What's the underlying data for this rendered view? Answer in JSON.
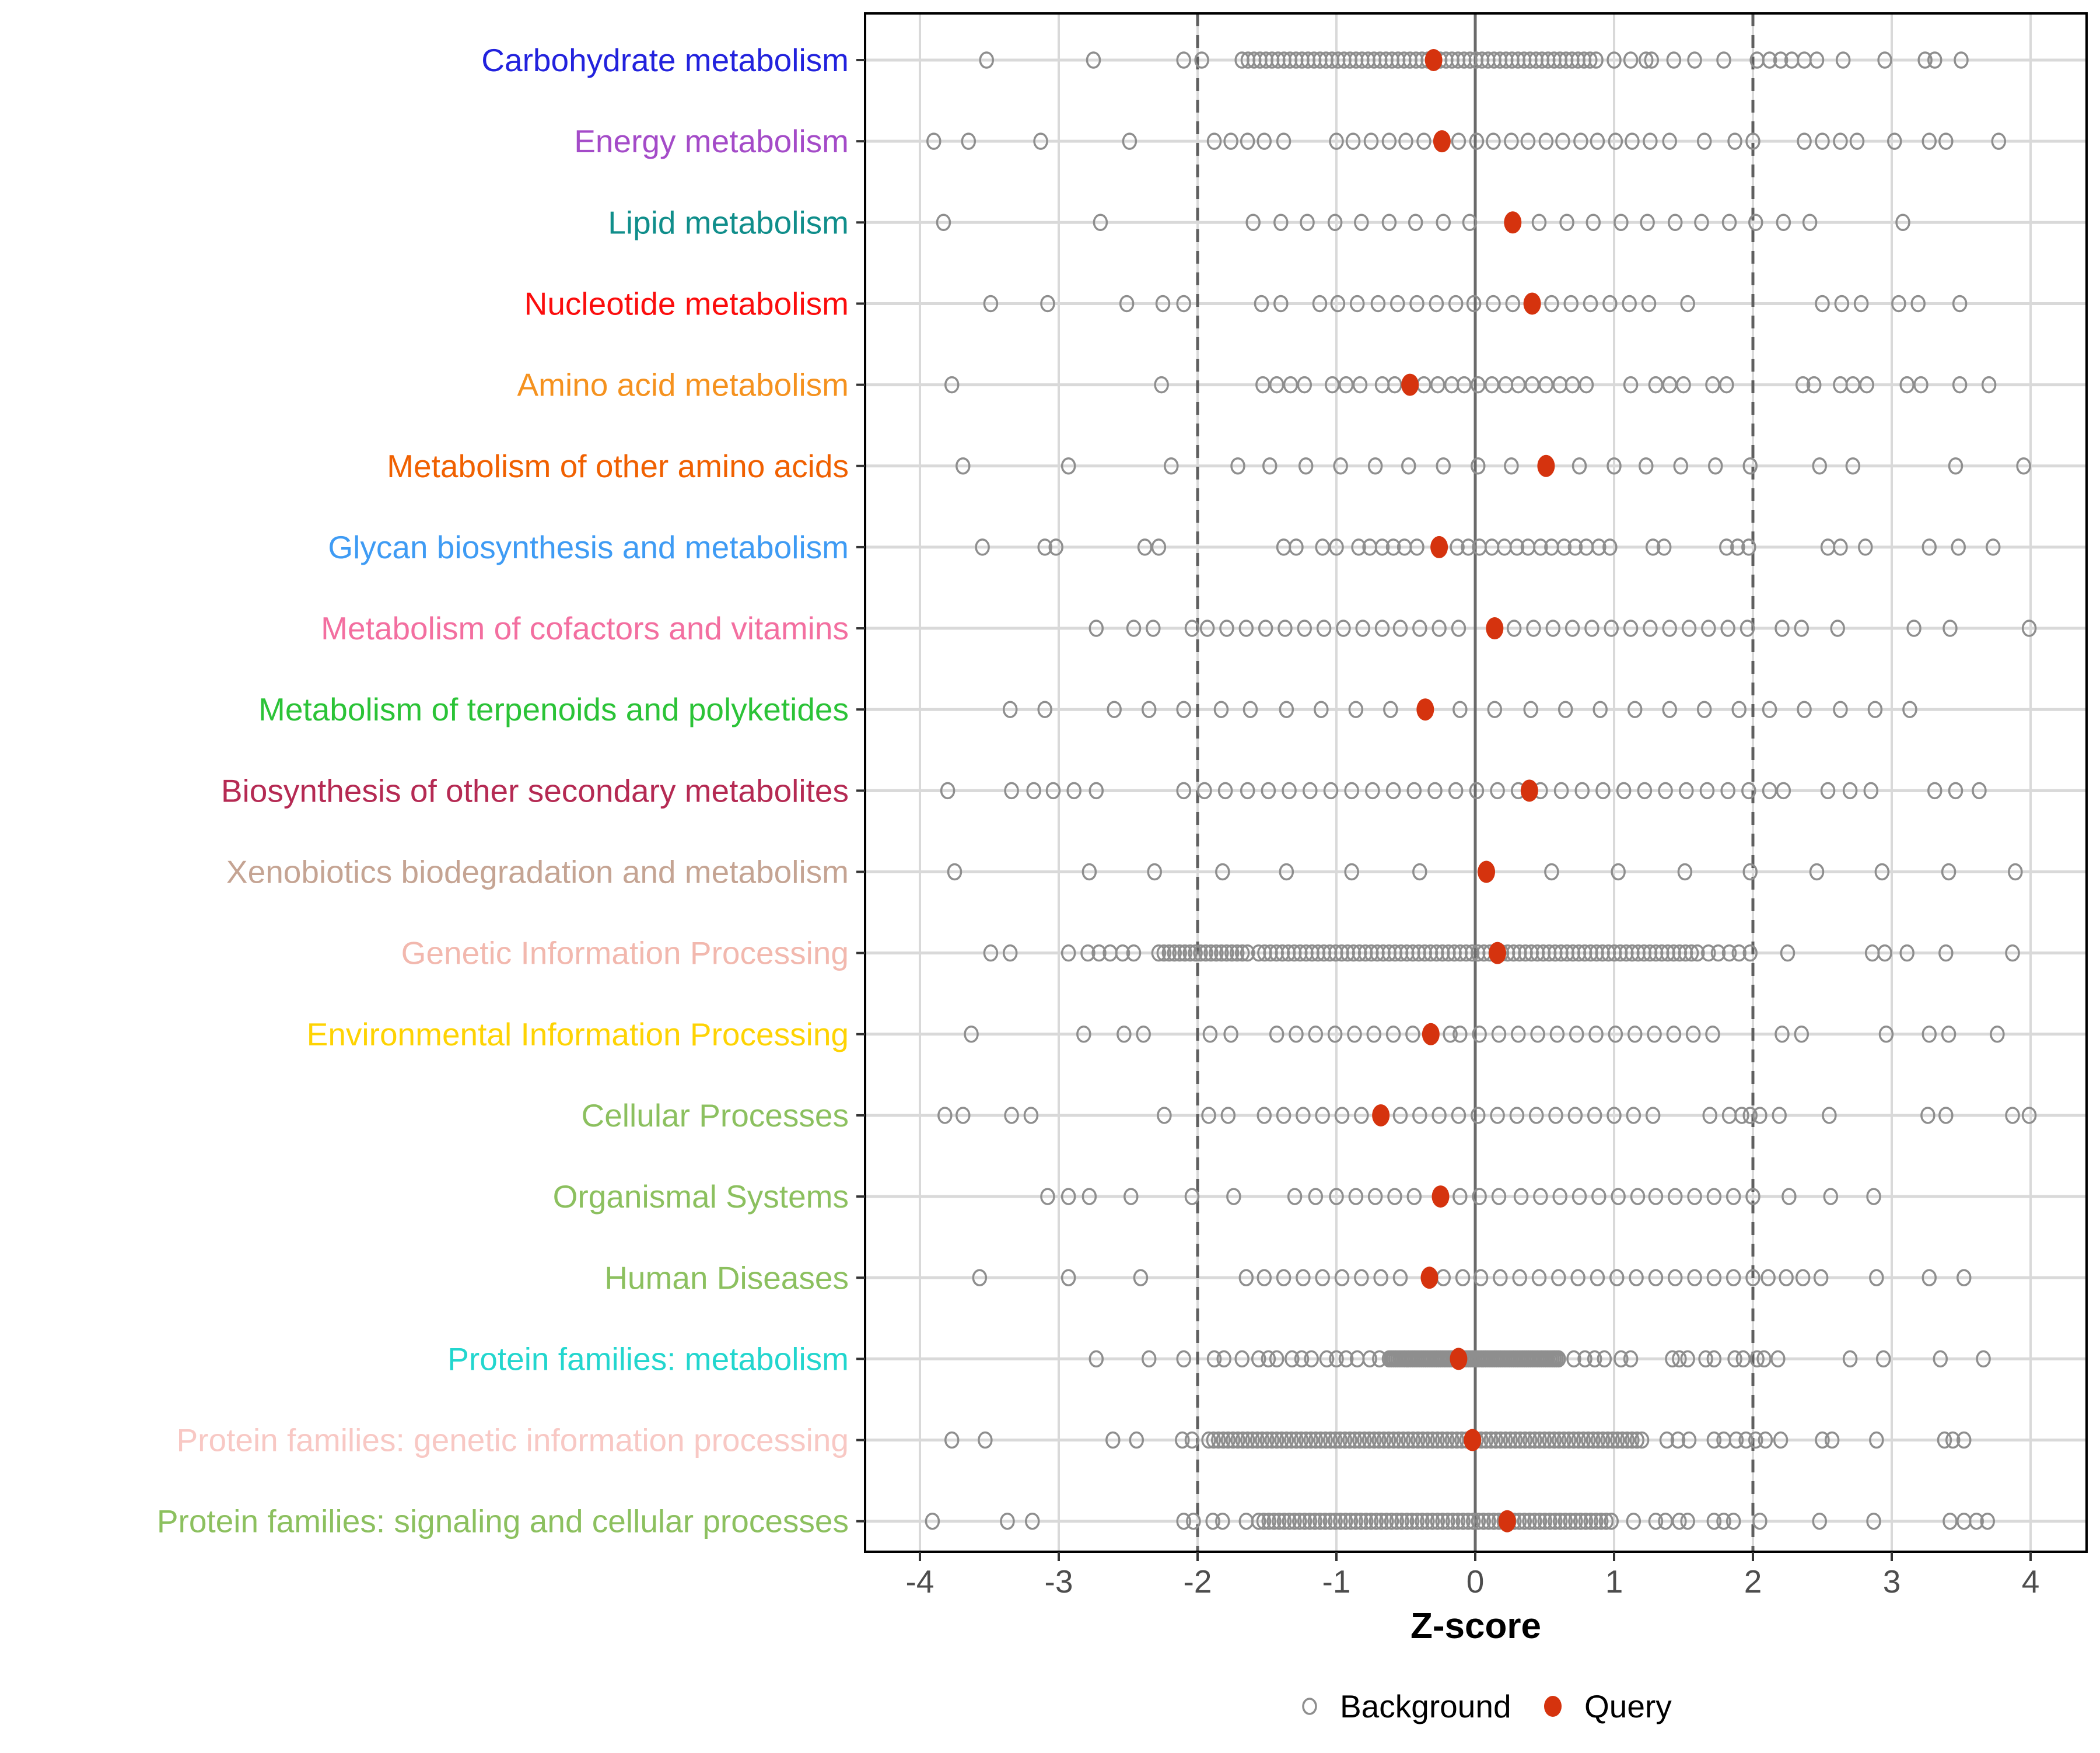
{
  "chart_data": {
    "type": "scatter",
    "title": "",
    "xlabel": "Z-score",
    "ylabel": "",
    "xlim": [
      -4.4,
      4.4
    ],
    "xticks": [
      -4,
      -3,
      -2,
      -1,
      0,
      1,
      2,
      3,
      4
    ],
    "grid": true,
    "reference_lines": {
      "solid_at": 0,
      "dashed_at": [
        -2,
        2
      ]
    },
    "legend_position": "bottom",
    "legend": [
      {
        "label": "Background",
        "marker": "open-circle",
        "color": "#8e8e8e"
      },
      {
        "label": "Query",
        "marker": "filled-circle",
        "color": "#d5330e"
      }
    ],
    "marker_styles": {
      "background_stroke": "#8e8e8e",
      "query_fill": "#d5330e"
    },
    "categories": [
      {
        "name": "Carbohydrate metabolism",
        "color": "#2222dd",
        "query": -0.3,
        "background": [
          -3.52,
          -2.75,
          -2.1,
          -1.97,
          1.0,
          1.12,
          1.23,
          1.27,
          1.43,
          1.58,
          1.79,
          2.03,
          2.12,
          2.2,
          2.28,
          2.37,
          2.46,
          2.65,
          2.95,
          3.24,
          3.31,
          3.5
        ],
        "background_bands": [
          {
            "from": -1.68,
            "to": 0.87,
            "n": 60
          }
        ]
      },
      {
        "name": "Energy metabolism",
        "color": "#a44bc8",
        "query": -0.24,
        "background": [
          -3.9,
          -3.65,
          -3.13,
          -2.49,
          -1.88,
          -1.76,
          -1.64,
          -1.52,
          -1.38,
          -1.0,
          -0.88,
          -0.75,
          -0.62,
          -0.5,
          -0.37,
          -0.12,
          0.01,
          0.13,
          0.26,
          0.38,
          0.51,
          0.63,
          0.76,
          0.88,
          1.01,
          1.13,
          1.26,
          1.4,
          1.65,
          1.87,
          2.0,
          2.37,
          2.5,
          2.63,
          2.75,
          3.02,
          3.27,
          3.39,
          3.77
        ],
        "background_bands": []
      },
      {
        "name": "Lipid metabolism",
        "color": "#108e8b",
        "query": 0.27,
        "background": [
          -3.83,
          -2.7,
          -1.6,
          -1.4,
          -1.21,
          -1.01,
          -0.82,
          -0.62,
          -0.43,
          -0.23,
          -0.04,
          0.46,
          0.66,
          0.85,
          1.05,
          1.24,
          1.44,
          1.63,
          1.83,
          2.02,
          2.22,
          2.41,
          3.08
        ],
        "background_bands": []
      },
      {
        "name": "Nucleotide metabolism",
        "color": "#fb0d0d",
        "query": 0.41,
        "background": [
          -3.49,
          -3.08,
          -2.51,
          -2.25,
          -2.1,
          -1.54,
          -1.4,
          -1.12,
          -0.99,
          -0.85,
          -0.7,
          -0.56,
          -0.42,
          -0.28,
          -0.14,
          -0.01,
          0.13,
          0.27,
          0.55,
          0.69,
          0.83,
          0.97,
          1.11,
          1.25,
          1.53,
          2.5,
          2.64,
          2.78,
          3.05,
          3.19,
          3.49
        ],
        "background_bands": []
      },
      {
        "name": "Amino acid metabolism",
        "color": "#f5921f",
        "query": -0.47,
        "background": [
          -3.77,
          -2.26,
          -1.53,
          -1.43,
          -1.33,
          -1.23,
          -1.03,
          -0.93,
          -0.83,
          -0.67,
          -0.58,
          -0.37,
          -0.27,
          -0.17,
          -0.08,
          0.02,
          0.12,
          0.22,
          0.31,
          0.41,
          0.51,
          0.61,
          0.7,
          0.8,
          1.12,
          1.3,
          1.4,
          1.5,
          1.71,
          1.81,
          2.36,
          2.44,
          2.63,
          2.72,
          2.82,
          3.11,
          3.21,
          3.49,
          3.7
        ],
        "background_bands": []
      },
      {
        "name": "Metabolism of other amino acids",
        "color": "#f06000",
        "query": 0.51,
        "background": [
          -3.69,
          -2.93,
          -2.19,
          -1.71,
          -1.48,
          -1.22,
          -0.97,
          -0.72,
          -0.48,
          -0.23,
          0.02,
          0.26,
          0.75,
          1.0,
          1.23,
          1.48,
          1.73,
          1.98,
          2.48,
          2.72,
          3.46,
          3.95
        ],
        "background_bands": []
      },
      {
        "name": "Glycan biosynthesis and metabolism",
        "color": "#3e9bf4",
        "query": -0.26,
        "background": [
          -3.55,
          -3.1,
          -3.02,
          -2.38,
          -2.28,
          -1.38,
          -1.29,
          -1.1,
          -1.0,
          -0.84,
          -0.76,
          -0.67,
          -0.59,
          -0.51,
          -0.42,
          -0.13,
          -0.05,
          0.03,
          0.12,
          0.21,
          0.3,
          0.38,
          0.47,
          0.55,
          0.64,
          0.72,
          0.8,
          0.89,
          0.97,
          1.28,
          1.36,
          1.81,
          1.89,
          1.97,
          2.54,
          2.63,
          2.81,
          3.27,
          3.48,
          3.73
        ],
        "background_bands": []
      },
      {
        "name": "Metabolism of cofactors and vitamins",
        "color": "#f36fa0",
        "query": 0.14,
        "background": [
          -2.73,
          -2.46,
          -2.32,
          -2.04,
          -1.93,
          -1.79,
          -1.65,
          -1.51,
          -1.37,
          -1.23,
          -1.09,
          -0.95,
          -0.81,
          -0.67,
          -0.54,
          -0.4,
          -0.26,
          -0.12,
          0.28,
          0.42,
          0.56,
          0.7,
          0.84,
          0.98,
          1.12,
          1.26,
          1.4,
          1.54,
          1.68,
          1.82,
          1.96,
          2.21,
          2.35,
          2.61,
          3.16,
          3.42,
          3.99
        ],
        "background_bands": []
      },
      {
        "name": "Metabolism of terpenoids and polyketides",
        "color": "#2bc337",
        "query": -0.36,
        "background": [
          -3.35,
          -3.1,
          -2.6,
          -2.35,
          -2.1,
          -1.83,
          -1.62,
          -1.36,
          -1.11,
          -0.86,
          -0.61,
          -0.11,
          0.14,
          0.4,
          0.65,
          0.9,
          1.15,
          1.4,
          1.65,
          1.9,
          2.12,
          2.37,
          2.63,
          2.88,
          3.13
        ],
        "background_bands": []
      },
      {
        "name": "Biosynthesis of other secondary metabolites",
        "color": "#b52a53",
        "query": 0.39,
        "background": [
          -3.8,
          -3.34,
          -3.18,
          -3.04,
          -2.89,
          -2.73,
          -2.1,
          -1.95,
          -1.8,
          -1.64,
          -1.49,
          -1.34,
          -1.19,
          -1.04,
          -0.89,
          -0.74,
          -0.59,
          -0.44,
          -0.29,
          -0.14,
          0.01,
          0.16,
          0.31,
          0.47,
          0.62,
          0.77,
          0.92,
          1.07,
          1.22,
          1.37,
          1.52,
          1.67,
          1.82,
          1.97,
          2.12,
          2.22,
          2.54,
          2.7,
          2.85,
          3.31,
          3.46,
          3.63
        ],
        "background_bands": []
      },
      {
        "name": "Xenobiotics biodegradation and metabolism",
        "color": "#c5a493",
        "query": 0.08,
        "background": [
          -3.75,
          -2.78,
          -2.31,
          -1.82,
          -1.36,
          -0.89,
          -0.4,
          0.55,
          1.03,
          1.51,
          1.98,
          2.46,
          2.93,
          3.41,
          3.89
        ],
        "background_bands": []
      },
      {
        "name": "Genetic Information Processing",
        "color": "#f2b8ae",
        "query": 0.16,
        "background": [
          -3.49,
          -3.35,
          -2.93,
          -2.79,
          -2.71,
          -2.63,
          -2.54,
          -2.46,
          1.68,
          1.75,
          1.83,
          1.9,
          1.98,
          2.25,
          2.86,
          2.95,
          3.11,
          3.39,
          3.87
        ],
        "background_bands": [
          {
            "from": -2.28,
            "to": -1.64,
            "n": 18
          },
          {
            "from": -1.56,
            "to": 1.6,
            "n": 75
          }
        ]
      },
      {
        "name": "Environmental Information Processing",
        "color": "#fed303",
        "query": -0.32,
        "background": [
          -3.63,
          -2.82,
          -2.53,
          -2.39,
          -1.91,
          -1.76,
          -1.43,
          -1.29,
          -1.15,
          -1.01,
          -0.87,
          -0.73,
          -0.59,
          -0.45,
          -0.18,
          -0.11,
          0.03,
          0.17,
          0.31,
          0.45,
          0.59,
          0.73,
          0.87,
          1.01,
          1.15,
          1.29,
          1.43,
          1.57,
          1.71,
          2.21,
          2.35,
          2.96,
          3.27,
          3.41,
          3.76
        ],
        "background_bands": []
      },
      {
        "name": "Cellular Processes",
        "color": "#8cc05f",
        "query": -0.68,
        "background": [
          -3.82,
          -3.69,
          -3.34,
          -3.2,
          -2.24,
          -1.92,
          -1.78,
          -1.52,
          -1.38,
          -1.24,
          -1.1,
          -0.96,
          -0.82,
          -0.54,
          -0.4,
          -0.26,
          -0.12,
          0.02,
          0.16,
          0.3,
          0.44,
          0.58,
          0.72,
          0.86,
          1.0,
          1.14,
          1.28,
          1.69,
          1.83,
          1.92,
          1.98,
          2.05,
          2.19,
          2.55,
          3.26,
          3.39,
          3.87,
          3.99
        ],
        "background_bands": []
      },
      {
        "name": "Organismal Systems",
        "color": "#8cc05f",
        "query": -0.25,
        "background": [
          -3.08,
          -2.93,
          -2.78,
          -2.48,
          -2.04,
          -1.74,
          -1.3,
          -1.15,
          -1.0,
          -0.86,
          -0.72,
          -0.58,
          -0.44,
          -0.11,
          0.03,
          0.17,
          0.33,
          0.47,
          0.61,
          0.75,
          0.89,
          1.03,
          1.17,
          1.3,
          1.44,
          1.58,
          1.72,
          1.86,
          2.0,
          2.26,
          2.56,
          2.87
        ],
        "background_bands": []
      },
      {
        "name": "Human Diseases",
        "color": "#8cc05f",
        "query": -0.33,
        "background": [
          -3.57,
          -2.93,
          -2.41,
          -1.65,
          -1.52,
          -1.38,
          -1.24,
          -1.1,
          -0.96,
          -0.82,
          -0.68,
          -0.54,
          -0.23,
          -0.09,
          0.04,
          0.18,
          0.32,
          0.46,
          0.6,
          0.74,
          0.88,
          1.02,
          1.16,
          1.3,
          1.44,
          1.58,
          1.72,
          1.86,
          2.0,
          2.11,
          2.24,
          2.36,
          2.49,
          2.89,
          3.27,
          3.52
        ],
        "background_bands": []
      },
      {
        "name": "Protein families: metabolism",
        "color": "#22d6ce",
        "query": -0.12,
        "background": [
          -2.73,
          -2.35,
          -2.1,
          -1.88,
          -1.81,
          -1.68,
          -1.56,
          -1.49,
          -1.43,
          -1.32,
          -1.25,
          -1.18,
          -1.07,
          -1.0,
          -0.93,
          -0.85,
          -0.76,
          -0.69,
          0.71,
          0.79,
          0.86,
          0.93,
          1.05,
          1.12,
          1.42,
          1.47,
          1.53,
          1.66,
          1.72,
          1.87,
          1.93,
          2.03,
          2.08,
          2.18,
          2.7,
          2.94,
          3.35,
          3.66
        ],
        "background_bands": [
          {
            "from": -0.62,
            "to": 0.6,
            "n": 80
          }
        ]
      },
      {
        "name": "Protein families: genetic information processing",
        "color": "#f8c8c4",
        "query": -0.02,
        "background": [
          -3.77,
          -3.53,
          -2.61,
          -2.44,
          -2.11,
          -2.04,
          1.38,
          1.46,
          1.54,
          1.72,
          1.79,
          1.88,
          1.95,
          2.02,
          2.09,
          2.2,
          2.5,
          2.57,
          2.89,
          3.38,
          3.44,
          3.52
        ],
        "background_bands": [
          {
            "from": -1.92,
            "to": 1.2,
            "n": 90
          }
        ]
      },
      {
        "name": "Protein families: signaling and cellular processes",
        "color": "#8cc05f",
        "query": 0.23,
        "background": [
          -3.91,
          -3.37,
          -3.19,
          -2.1,
          -2.03,
          -1.89,
          -1.82,
          -1.65,
          1.14,
          1.3,
          1.37,
          1.47,
          1.53,
          1.72,
          1.79,
          1.86,
          2.05,
          2.48,
          2.87,
          3.42,
          3.52,
          3.61,
          3.69
        ],
        "background_bands": [
          {
            "from": -1.56,
            "to": 0.98,
            "n": 70
          }
        ]
      }
    ]
  },
  "style": {
    "panel_border": "#000000",
    "grid_major": "#d9d9d9",
    "zero_line": "#6a6a6a",
    "dashed_line": "#5f5f5f",
    "tick_label_color": "#4d4d4d",
    "background_point_stroke": "#8e8e8e",
    "query_point_fill": "#d5330e"
  }
}
